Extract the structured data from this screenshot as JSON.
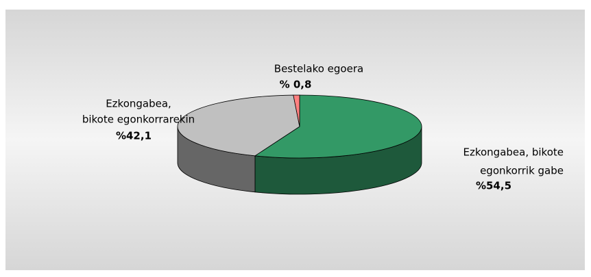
{
  "chart_data": {
    "type": "pie3d",
    "categories": [
      [
        "Ezkongabea, bikote",
        "egonkorrik gabe"
      ],
      [
        "Ezkongabea,",
        "bikote egonkorrarekin"
      ],
      [
        "Bestelako egoera"
      ]
    ],
    "values": [
      54.5,
      42.1,
      0.8
    ],
    "value_labels": [
      "%54,5",
      "%42,1",
      "% 0,8"
    ],
    "colors": [
      "#339966",
      "#c0c0c0",
      "#ff8080"
    ]
  }
}
